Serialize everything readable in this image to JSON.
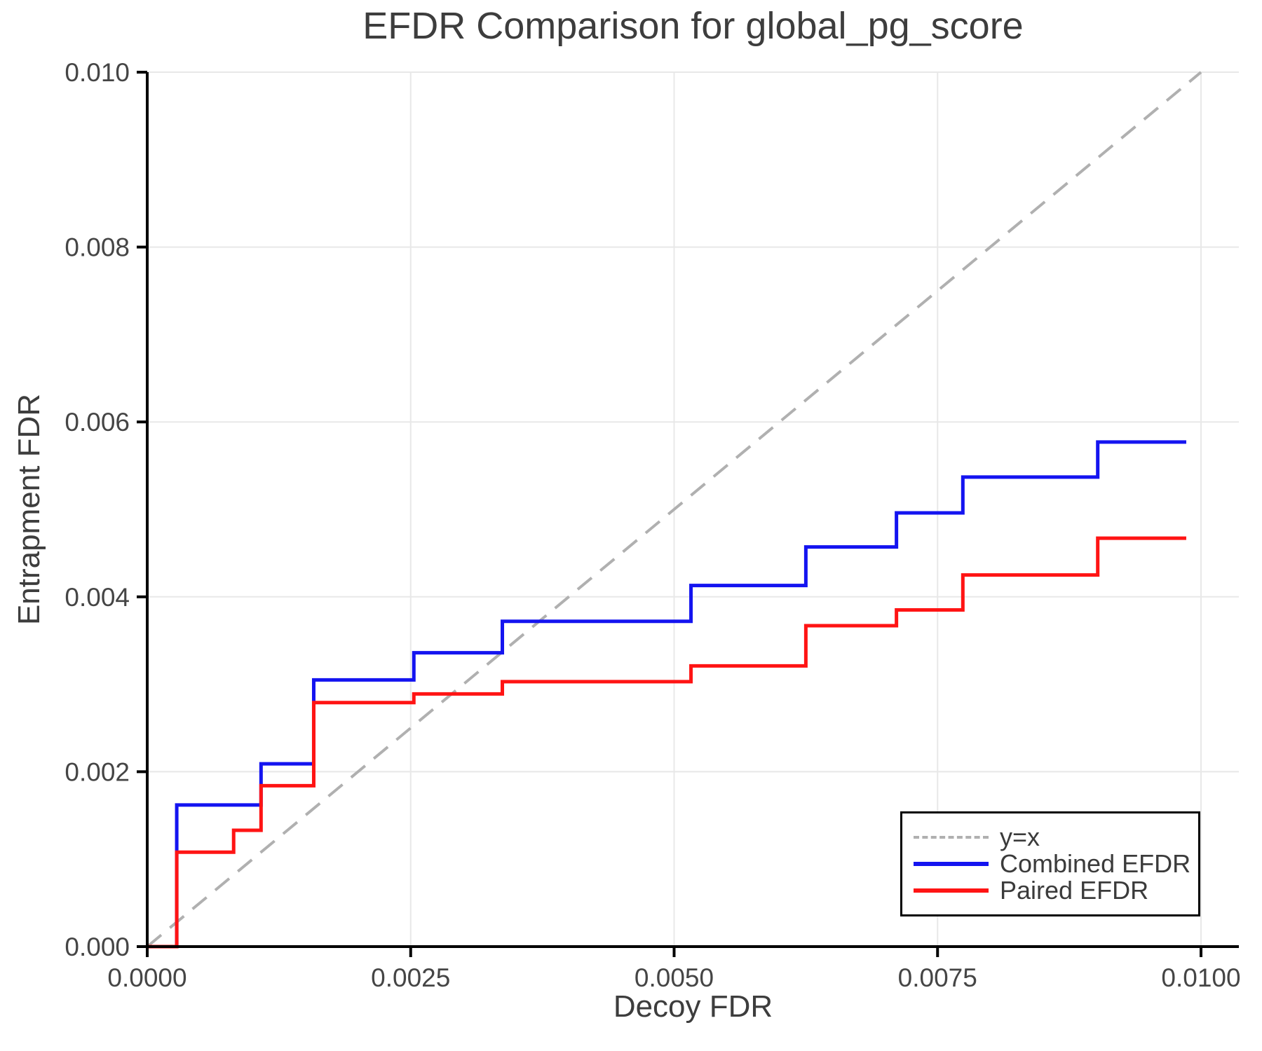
{
  "title": "EFDR Comparison for global_pg_score",
  "axes": {
    "xlabel": "Decoy FDR",
    "ylabel": "Entrapment FDR"
  },
  "chart_data": {
    "type": "line",
    "subtype": "step-post",
    "title": "EFDR Comparison for global_pg_score",
    "xlabel": "Decoy FDR",
    "ylabel": "Entrapment FDR",
    "xlim": [
      0,
      0.01036
    ],
    "ylim": [
      0,
      0.01
    ],
    "grid": true,
    "grid_color": "#e8e8e8",
    "spine_color": "#000000",
    "legend_position": "lower right",
    "x_ticks": {
      "values": [
        0.0,
        0.0025,
        0.005,
        0.0075,
        0.01
      ],
      "labels": [
        "0.0000",
        "0.0025",
        "0.0050",
        "0.0075",
        "0.0100"
      ]
    },
    "y_ticks": {
      "values": [
        0.0,
        0.002,
        0.004,
        0.006,
        0.008,
        0.01
      ],
      "labels": [
        "0.000",
        "0.002",
        "0.004",
        "0.006",
        "0.008",
        "0.010"
      ]
    },
    "reference_line": {
      "label": "y=x",
      "from": [
        0,
        0
      ],
      "to": [
        0.01,
        0.01
      ],
      "color": "#b0b0b0",
      "dashed": true
    },
    "series": [
      {
        "name": "Combined EFDR",
        "color": "#1414f0",
        "start": [
          0,
          0
        ],
        "end_x": 0.00986,
        "steps": [
          [
            0.00028,
            0.00162
          ],
          [
            0.00108,
            0.00209
          ],
          [
            0.00158,
            0.00305
          ],
          [
            0.00253,
            0.00336
          ],
          [
            0.00337,
            0.00372
          ],
          [
            0.00516,
            0.00413
          ],
          [
            0.00625,
            0.00457
          ],
          [
            0.00711,
            0.00496
          ],
          [
            0.00774,
            0.00537
          ],
          [
            0.00902,
            0.00577
          ]
        ]
      },
      {
        "name": "Paired EFDR",
        "color": "#ff1414",
        "start": [
          0,
          0
        ],
        "end_x": 0.00986,
        "steps": [
          [
            0.00028,
            0.00108
          ],
          [
            0.00082,
            0.00133
          ],
          [
            0.00108,
            0.00184
          ],
          [
            0.00158,
            0.00279
          ],
          [
            0.00253,
            0.00289
          ],
          [
            0.00337,
            0.00303
          ],
          [
            0.00516,
            0.00321
          ],
          [
            0.00625,
            0.00367
          ],
          [
            0.00711,
            0.00385
          ],
          [
            0.00774,
            0.00425
          ],
          [
            0.00902,
            0.00467
          ]
        ]
      }
    ]
  }
}
